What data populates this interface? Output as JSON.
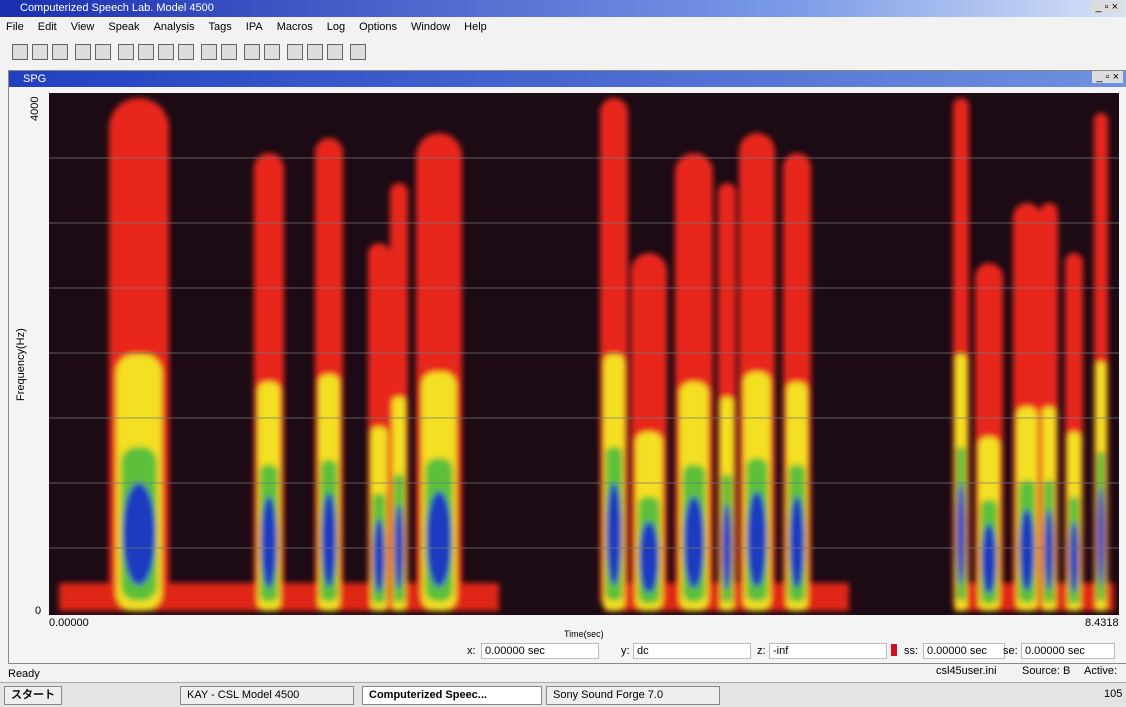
{
  "window": {
    "title": "Computerized Speech Lab. Model 4500",
    "menu": [
      "File",
      "Edit",
      "View",
      "Speak",
      "Analysis",
      "Tags",
      "IPA",
      "Macros",
      "Log",
      "Options",
      "Window",
      "Help"
    ]
  },
  "child_window": {
    "title": "SPG",
    "y_top_label": "4000",
    "y_bottom_label": "0",
    "y_axis_label": "Frequency(Hz)",
    "x_start_label": "0.00000",
    "x_end_label": "8.4318",
    "x_axis_label": "Time(sec)",
    "fields": {
      "x": "x:",
      "x_value": "0.00000 sec",
      "y": "y:",
      "y_value": "dc",
      "z": "z:",
      "z_value": "-inf",
      "ss": "ss:",
      "ss_value": "0.00000 sec",
      "se": "se:",
      "se_value": "0.00000 sec"
    }
  },
  "status_bar": {
    "left": "Ready",
    "ini": "csl45user.ini",
    "source": "Source: B",
    "active": "Active:"
  },
  "taskbar": {
    "start": "スタート",
    "items": [
      "KAY - CSL Model 4500",
      "Computerized Speec...",
      "Sony Sound Forge 7.0"
    ],
    "clock": "105"
  }
}
